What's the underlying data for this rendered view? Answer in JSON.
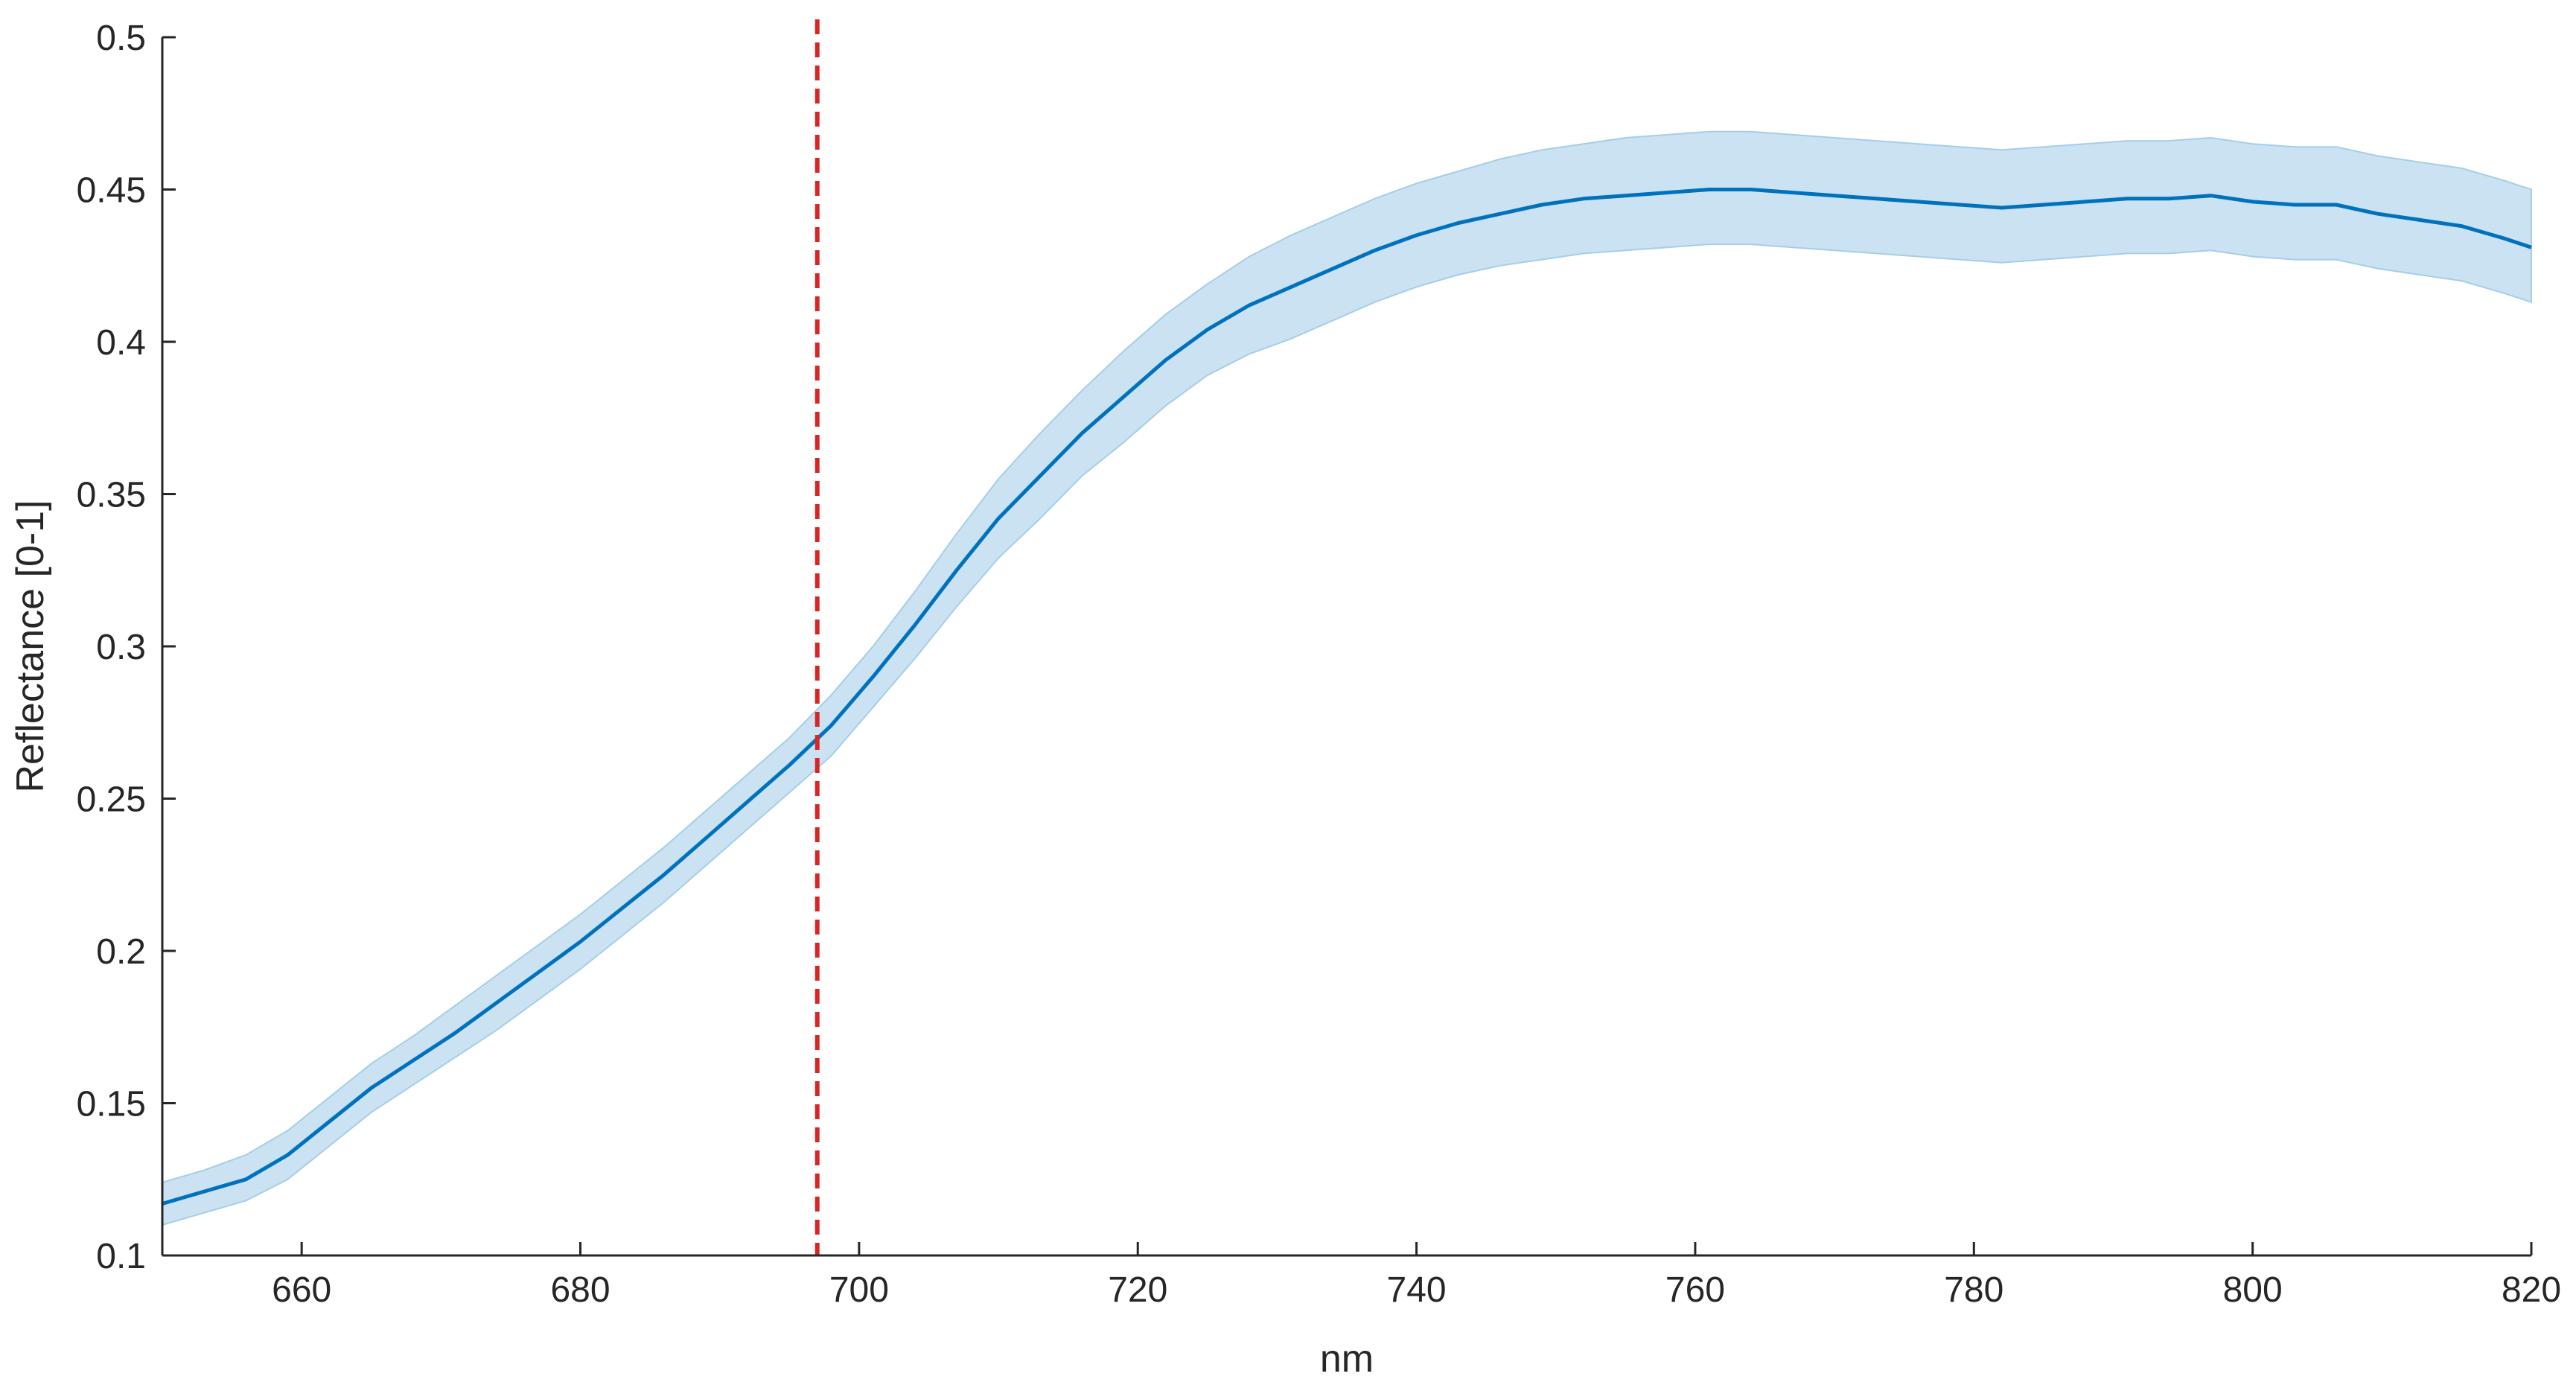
{
  "chart_data": {
    "type": "line",
    "title": "",
    "xlabel": "nm",
    "ylabel": "Reflectance [0-1]",
    "xlim": [
      650,
      820
    ],
    "ylim": [
      0.1,
      0.5
    ],
    "x_ticks": [
      660,
      680,
      700,
      720,
      740,
      760,
      780,
      800,
      820
    ],
    "x_tick_labels": [
      "660",
      "680",
      "700",
      "720",
      "740",
      "760",
      "780",
      "800",
      "820"
    ],
    "y_ticks": [
      0.1,
      0.15,
      0.2,
      0.25,
      0.3,
      0.35,
      0.4,
      0.45,
      0.5
    ],
    "y_tick_labels": [
      "0.1",
      "0.15",
      "0.2",
      "0.25",
      "0.3",
      "0.35",
      "0.4",
      "0.45",
      "0.5"
    ],
    "grid": false,
    "line_color": "#0072BD",
    "band_color": "#A6CEE8",
    "series": [
      {
        "x": [
          650,
          653,
          656,
          659,
          662,
          665,
          668,
          671,
          674,
          677,
          680,
          683,
          686,
          689,
          692,
          695,
          698,
          701,
          704,
          707,
          710,
          713,
          716,
          719,
          722,
          725,
          728,
          731,
          734,
          737,
          740,
          743,
          746,
          749,
          752,
          755,
          758,
          761,
          764,
          767,
          770,
          773,
          776,
          779,
          782,
          785,
          788,
          791,
          794,
          797,
          800,
          803,
          806,
          809,
          812,
          815,
          818,
          820
        ],
        "values": [
          0.117,
          0.121,
          0.125,
          0.133,
          0.144,
          0.155,
          0.164,
          0.173,
          0.183,
          0.193,
          0.203,
          0.214,
          0.225,
          0.237,
          0.249,
          0.261,
          0.274,
          0.29,
          0.307,
          0.325,
          0.342,
          0.356,
          0.37,
          0.382,
          0.394,
          0.404,
          0.412,
          0.418,
          0.424,
          0.43,
          0.435,
          0.439,
          0.442,
          0.445,
          0.447,
          0.448,
          0.449,
          0.45,
          0.45,
          0.449,
          0.448,
          0.447,
          0.446,
          0.445,
          0.444,
          0.445,
          0.446,
          0.447,
          0.447,
          0.448,
          0.446,
          0.445,
          0.445,
          0.442,
          0.44,
          0.438,
          0.434,
          0.431
        ],
        "upper": [
          0.124,
          0.128,
          0.133,
          0.141,
          0.152,
          0.163,
          0.172,
          0.182,
          0.192,
          0.202,
          0.212,
          0.223,
          0.234,
          0.246,
          0.258,
          0.27,
          0.284,
          0.3,
          0.318,
          0.337,
          0.355,
          0.37,
          0.384,
          0.397,
          0.409,
          0.419,
          0.428,
          0.435,
          0.441,
          0.447,
          0.452,
          0.456,
          0.46,
          0.463,
          0.465,
          0.467,
          0.468,
          0.469,
          0.469,
          0.468,
          0.467,
          0.466,
          0.465,
          0.464,
          0.463,
          0.464,
          0.465,
          0.466,
          0.466,
          0.467,
          0.465,
          0.464,
          0.464,
          0.461,
          0.459,
          0.457,
          0.453,
          0.45
        ],
        "lower": [
          0.11,
          0.114,
          0.118,
          0.125,
          0.136,
          0.147,
          0.156,
          0.165,
          0.174,
          0.184,
          0.194,
          0.205,
          0.216,
          0.228,
          0.24,
          0.252,
          0.264,
          0.28,
          0.296,
          0.313,
          0.329,
          0.342,
          0.356,
          0.367,
          0.379,
          0.389,
          0.396,
          0.401,
          0.407,
          0.413,
          0.418,
          0.422,
          0.425,
          0.427,
          0.429,
          0.43,
          0.431,
          0.432,
          0.432,
          0.431,
          0.43,
          0.429,
          0.428,
          0.427,
          0.426,
          0.427,
          0.428,
          0.429,
          0.429,
          0.43,
          0.428,
          0.427,
          0.427,
          0.424,
          0.422,
          0.42,
          0.416,
          0.413
        ]
      }
    ],
    "reference_line": {
      "x": 697,
      "color": "#D62728",
      "style": "dashed"
    }
  }
}
